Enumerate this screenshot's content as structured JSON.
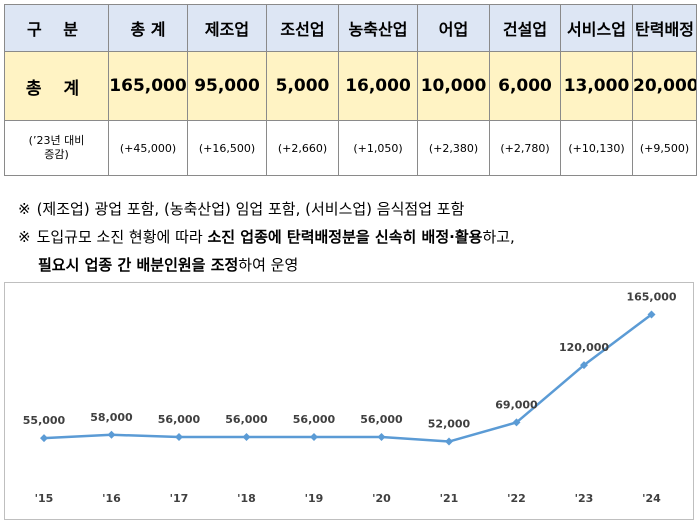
{
  "table": {
    "header": [
      "구 분",
      "총 계",
      "제조업",
      "조선업",
      "농축산업",
      "어업",
      "건설업",
      "서비스업",
      "탄력배정"
    ],
    "total_row": {
      "label": "총 계",
      "values": [
        "165,000",
        "95,000",
        "5,000",
        "16,000",
        "10,000",
        "6,000",
        "13,000",
        "20,000"
      ]
    },
    "diff_row": {
      "label_line1": "(’23년 대비",
      "label_line2": "증감)",
      "values": [
        "(+45,000)",
        "(+16,500)",
        "(+2,660)",
        "(+1,050)",
        "(+2,380)",
        "(+2,780)",
        "(+10,130)",
        "(+9,500)"
      ]
    }
  },
  "notes": {
    "mark": "※",
    "note1": "(제조업) 광업 포함, (농축산업) 임업 포함, (서비스업) 음식점업 포함",
    "note2_a": "도입규모 소진 현황에 따라 ",
    "note2_b": "소진 업종에 탄력배정분을 신속히 배정·활용",
    "note2_c": "하고,",
    "note3_a": "필요시 업종 간 배분인원을 조정",
    "note3_b": "하여 운영"
  },
  "chart_data": {
    "type": "line",
    "categories": [
      "'15",
      "'16",
      "'17",
      "'18",
      "'19",
      "'20",
      "'21",
      "'22",
      "'23",
      "'24"
    ],
    "values": [
      55000,
      58000,
      56000,
      56000,
      56000,
      56000,
      52000,
      69000,
      120000,
      165000
    ],
    "data_labels": [
      "55,000",
      "58,000",
      "56,000",
      "56,000",
      "56,000",
      "56,000",
      "52,000",
      "69,000",
      "120,000",
      "165,000"
    ],
    "ylim": [
      0,
      185000
    ],
    "color": "#5b9bd5",
    "grid": false,
    "legend": "none"
  }
}
